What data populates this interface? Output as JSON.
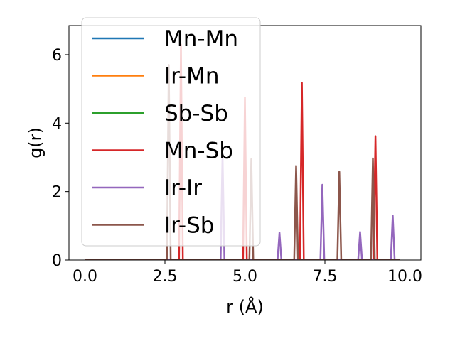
{
  "chart_data": {
    "type": "line",
    "xlabel": "r (Å)",
    "ylabel": "g(r)",
    "xlim": [
      -0.5,
      10.5
    ],
    "ylim": [
      0,
      6.85
    ],
    "xticks": [
      0.0,
      2.5,
      5.0,
      7.5,
      10.0
    ],
    "xtick_labels": [
      "0.0",
      "2.5",
      "5.0",
      "7.5",
      "10.0"
    ],
    "yticks": [
      0,
      2,
      4,
      6
    ],
    "ytick_labels": [
      "0",
      "2",
      "4",
      "6"
    ],
    "grid": false,
    "legend": {
      "placement": "top-left",
      "frame": true
    },
    "peak_width": 0.12,
    "x_range": [
      0,
      9.85
    ],
    "series": [
      {
        "name": "Mn-Mn",
        "color": "#1f77b4",
        "peaks": []
      },
      {
        "name": "Ir-Mn",
        "color": "#ff7f0e",
        "peaks": []
      },
      {
        "name": "Sb-Sb",
        "color": "#2ca02c",
        "peaks": []
      },
      {
        "name": "Mn-Sb",
        "color": "#d62728",
        "peaks": [
          [
            3.0,
            6.3
          ],
          [
            5.0,
            4.75
          ],
          [
            6.78,
            5.18
          ],
          [
            9.08,
            3.62
          ]
        ]
      },
      {
        "name": "Ir-Ir",
        "color": "#9467bd",
        "peaks": [
          [
            4.3,
            3.1
          ],
          [
            6.08,
            0.8
          ],
          [
            7.42,
            2.2
          ],
          [
            8.6,
            0.82
          ],
          [
            9.62,
            1.3
          ]
        ]
      },
      {
        "name": "Ir-Sb",
        "color": "#8c564b",
        "peaks": [
          [
            2.62,
            5.7
          ],
          [
            5.2,
            2.95
          ],
          [
            6.6,
            2.75
          ],
          [
            7.95,
            2.58
          ],
          [
            9.0,
            2.97
          ]
        ]
      }
    ]
  }
}
